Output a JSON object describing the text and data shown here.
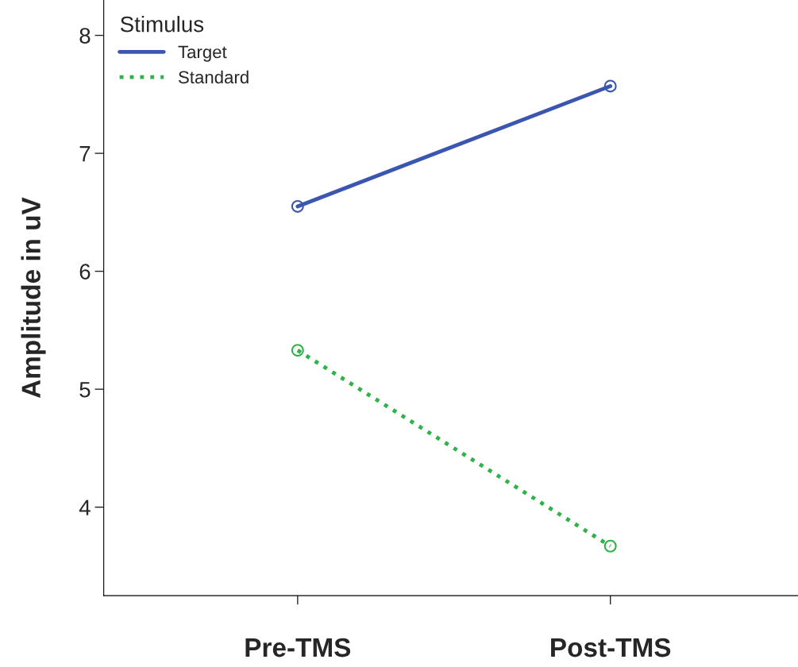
{
  "chart_data": {
    "type": "line",
    "ylabel": "Amplitude in uV",
    "legend_title": "Stimulus",
    "legend": "top left",
    "categories": [
      "Pre-TMS",
      "Post-TMS"
    ],
    "series": [
      {
        "name": "Target",
        "color": "#3a56b0",
        "values": [
          6.55,
          7.57
        ],
        "line_style": "solid"
      },
      {
        "name": "Standard",
        "color": "#2fb24a",
        "values": [
          5.33,
          3.67
        ],
        "line_style": "dotted"
      }
    ],
    "marker": "circle",
    "ylim": [
      3.25,
      8.3
    ],
    "yticks": [
      4,
      5,
      6,
      7,
      8
    ],
    "grid": false
  }
}
